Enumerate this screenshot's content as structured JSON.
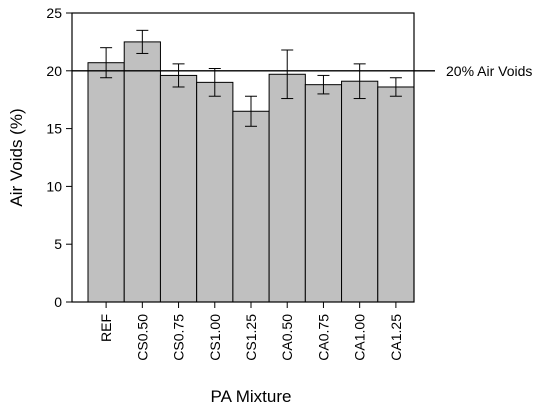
{
  "chart_data": {
    "type": "bar",
    "categories": [
      "REF",
      "CS0.50",
      "CS0.75",
      "CS1.00",
      "CS1.25",
      "CA0.50",
      "CA0.75",
      "CA1.00",
      "CA1.25"
    ],
    "series": [
      {
        "values": [
          20.7,
          22.5,
          19.6,
          19.0,
          16.5,
          19.7,
          18.8,
          19.1,
          18.6
        ],
        "error": [
          1.3,
          1.0,
          1.0,
          1.2,
          1.3,
          2.1,
          0.8,
          1.5,
          0.8
        ],
        "color": "#c0c0c0"
      }
    ],
    "xlabel": "PA Mixture",
    "ylabel": "Air Voids (%)",
    "ylim": [
      0,
      25
    ],
    "yticks": [
      0,
      5,
      10,
      15,
      20,
      25
    ],
    "reference_line": {
      "value": 20,
      "label": "20% Air Voids"
    },
    "grid": false,
    "bar_edge_color": "#000000"
  }
}
